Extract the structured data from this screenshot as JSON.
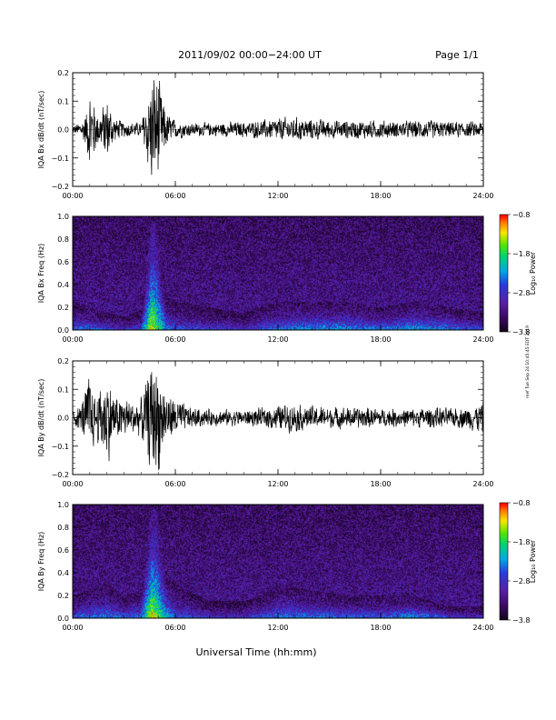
{
  "header": {
    "title": "2011/09/02  00:00−24:00 UT",
    "page": "Page 1/1"
  },
  "footer": {
    "xlabel": "Universal Time (hh:mm)"
  },
  "side_stamp": "mef Tue Sep 24 10:45:45 EDT 2019",
  "colors": {
    "trace": "#000000"
  },
  "chart_data": [
    {
      "type": "line",
      "ylabel": "IQA Bx dB/dt (nT/sec)",
      "ylim": [
        -0.2,
        0.2
      ],
      "yticks": [
        "0.2",
        "0.1",
        "0.0",
        "−0.1",
        "−0.2"
      ],
      "xlim_hours": [
        0,
        24
      ],
      "xticks": [
        "00:00",
        "06:00",
        "12:00",
        "18:00",
        "24:00"
      ],
      "envelope": {
        "x_hours": [
          0,
          0.5,
          0.8,
          1.0,
          1.5,
          2.0,
          2.5,
          3.0,
          3.5,
          4.0,
          4.6,
          5.0,
          5.3,
          5.6,
          6.0,
          7.0,
          8.0,
          9.0,
          10.0,
          11.0,
          12.0,
          13.0,
          14.0,
          15.0,
          16.0,
          17.0,
          18.0,
          19.0,
          20.0,
          21.0,
          22.0,
          23.0,
          24.0
        ],
        "amplitude": [
          0.015,
          0.03,
          0.07,
          0.16,
          0.06,
          0.12,
          0.04,
          0.03,
          0.03,
          0.025,
          0.21,
          0.21,
          0.1,
          0.06,
          0.035,
          0.025,
          0.025,
          0.028,
          0.03,
          0.035,
          0.045,
          0.045,
          0.04,
          0.035,
          0.035,
          0.035,
          0.035,
          0.03,
          0.035,
          0.035,
          0.03,
          0.03,
          0.03
        ]
      }
    },
    {
      "type": "heatmap",
      "ylabel": "IQA Bx Freq (Hz)",
      "ylim": [
        0.0,
        1.0
      ],
      "yticks": [
        "1.0",
        "0.8",
        "0.6",
        "0.4",
        "0.2",
        "0.0"
      ],
      "xlim_hours": [
        0,
        24
      ],
      "xticks": [
        "00:00",
        "06:00",
        "12:00",
        "18:00",
        "24:00"
      ],
      "colorbar": {
        "label": "Log₁₀ Power",
        "ticks": [
          "−0.8",
          "−1.8",
          "−2.8",
          "−3.8"
        ],
        "range": [
          -3.8,
          -0.8
        ]
      },
      "activity": {
        "x_hours": [
          0,
          1,
          2,
          3,
          4,
          4.6,
          4.9,
          5.5,
          6,
          8,
          10,
          11,
          12,
          14,
          16,
          18,
          20,
          22,
          24
        ],
        "band_top_hz": [
          0.25,
          0.2,
          0.15,
          0.12,
          0.18,
          0.95,
          0.95,
          0.3,
          0.25,
          0.2,
          0.15,
          0.2,
          0.25,
          0.25,
          0.25,
          0.2,
          0.25,
          0.2,
          0.15
        ],
        "peak_power": [
          -2.6,
          -2.4,
          -2.6,
          -2.8,
          -2.6,
          -1.2,
          -1.6,
          -2.4,
          -2.6,
          -2.7,
          -2.8,
          -2.6,
          -2.4,
          -2.3,
          -2.3,
          -2.4,
          -2.2,
          -2.4,
          -2.6
        ]
      }
    },
    {
      "type": "line",
      "ylabel": "IQA By dB/dt (nT/sec)",
      "ylim": [
        -0.2,
        0.2
      ],
      "yticks": [
        "0.2",
        "0.1",
        "0.0",
        "−0.1",
        "−0.2"
      ],
      "xlim_hours": [
        0,
        24
      ],
      "xticks": [
        "00:00",
        "06:00",
        "12:00",
        "18:00",
        "24:00"
      ],
      "envelope": {
        "x_hours": [
          0,
          0.5,
          1.0,
          1.3,
          2.0,
          2.5,
          3.0,
          3.5,
          4.0,
          4.6,
          5.0,
          5.3,
          5.6,
          6.0,
          6.5,
          7.0,
          8.0,
          9.0,
          10.0,
          11.0,
          12.0,
          13.0,
          14.0,
          15.0,
          16.0,
          17.0,
          18.0,
          19.0,
          20.0,
          21.0,
          22.0,
          23.0,
          24.0
        ],
        "amplitude": [
          0.03,
          0.05,
          0.18,
          0.08,
          0.17,
          0.08,
          0.08,
          0.06,
          0.07,
          0.21,
          0.21,
          0.12,
          0.08,
          0.08,
          0.05,
          0.04,
          0.03,
          0.03,
          0.03,
          0.035,
          0.05,
          0.05,
          0.045,
          0.04,
          0.04,
          0.04,
          0.035,
          0.035,
          0.035,
          0.04,
          0.035,
          0.04,
          0.06
        ]
      }
    },
    {
      "type": "heatmap",
      "ylabel": "IQA By Freq (Hz)",
      "ylim": [
        0.0,
        1.0
      ],
      "yticks": [
        "1.0",
        "0.8",
        "0.6",
        "0.4",
        "0.2",
        "0.0"
      ],
      "xlim_hours": [
        0,
        24
      ],
      "xticks": [
        "00:00",
        "06:00",
        "12:00",
        "18:00",
        "24:00"
      ],
      "colorbar": {
        "label": "Log₁₀ Power",
        "ticks": [
          "−0.8",
          "−1.8",
          "−2.8",
          "−3.8"
        ],
        "range": [
          -3.8,
          -0.8
        ]
      },
      "activity": {
        "x_hours": [
          0,
          1,
          2,
          3,
          4,
          4.6,
          4.9,
          5.5,
          6,
          8,
          10,
          11,
          12,
          14,
          16,
          18,
          20,
          22,
          24
        ],
        "band_top_hz": [
          0.2,
          0.25,
          0.3,
          0.2,
          0.25,
          0.95,
          0.95,
          0.4,
          0.3,
          0.15,
          0.15,
          0.2,
          0.3,
          0.25,
          0.2,
          0.2,
          0.2,
          0.1,
          0.1
        ],
        "peak_power": [
          -2.6,
          -2.4,
          -2.3,
          -2.5,
          -2.4,
          -1.2,
          -1.5,
          -2.2,
          -2.5,
          -2.8,
          -2.8,
          -2.6,
          -2.4,
          -2.4,
          -2.5,
          -2.5,
          -2.2,
          -2.6,
          -2.8
        ]
      }
    }
  ]
}
